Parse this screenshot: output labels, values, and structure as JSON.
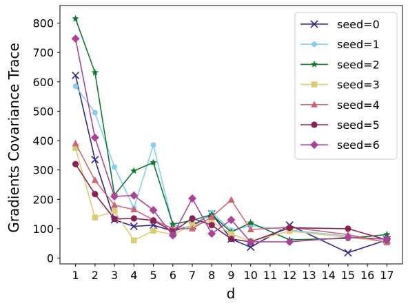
{
  "chart_data": {
    "type": "line",
    "title": "",
    "xlabel": "d",
    "ylabel": "Gradients Covariance Trace",
    "x_ticks": [
      1,
      2,
      3,
      4,
      5,
      6,
      7,
      8,
      9,
      10,
      11,
      12,
      13,
      14,
      15,
      16,
      17
    ],
    "y_ticks": [
      0,
      100,
      200,
      300,
      400,
      500,
      600,
      700,
      800
    ],
    "xlim": [
      0.2,
      17.8
    ],
    "ylim": [
      -20,
      860
    ],
    "grid": false,
    "legend_position": "top-right",
    "series": [
      {
        "name": "seed=0",
        "color": "#332288",
        "marker": "x",
        "x": [
          1,
          2,
          3,
          4,
          5,
          6,
          7,
          8,
          9,
          10,
          12,
          15,
          17
        ],
        "y": [
          622,
          335,
          130,
          108,
          112,
          92,
          110,
          150,
          65,
          37,
          112,
          18,
          62
        ]
      },
      {
        "name": "seed=1",
        "color": "#88ccee",
        "marker": "hexagon",
        "x": [
          1,
          2,
          3,
          4,
          5,
          6,
          7,
          8,
          9,
          10,
          12,
          15,
          17
        ],
        "y": [
          585,
          495,
          310,
          170,
          385,
          112,
          100,
          155,
          95,
          110,
          95,
          75,
          62
        ]
      },
      {
        "name": "seed=2",
        "color": "#117733",
        "marker": "star",
        "x": [
          1,
          2,
          3,
          4,
          5,
          6,
          7,
          8,
          9,
          10,
          12,
          15,
          17
        ],
        "y": [
          815,
          632,
          215,
          297,
          325,
          115,
          128,
          148,
          88,
          120,
          62,
          67,
          80
        ]
      },
      {
        "name": "seed=3",
        "color": "#ddcc77",
        "marker": "square",
        "x": [
          1,
          2,
          3,
          4,
          5,
          6,
          7,
          8,
          9,
          10,
          12,
          15,
          17
        ],
        "y": [
          375,
          138,
          160,
          60,
          93,
          80,
          112,
          125,
          82,
          57,
          92,
          70,
          55
        ]
      },
      {
        "name": "seed=4",
        "color": "#cc6677",
        "marker": "triangle",
        "x": [
          1,
          2,
          3,
          4,
          5,
          6,
          7,
          8,
          9,
          10,
          12,
          15,
          17
        ],
        "y": [
          390,
          265,
          180,
          165,
          130,
          100,
          100,
          140,
          198,
          97,
          105,
          80,
          53
        ]
      },
      {
        "name": "seed=5",
        "color": "#882255",
        "marker": "circle",
        "x": [
          1,
          2,
          3,
          4,
          5,
          6,
          7,
          8,
          9,
          10,
          12,
          15,
          17
        ],
        "y": [
          320,
          218,
          133,
          135,
          128,
          90,
          135,
          112,
          65,
          55,
          103,
          100,
          62
        ]
      },
      {
        "name": "seed=6",
        "color": "#aa4499",
        "marker": "diamond",
        "x": [
          1,
          2,
          3,
          4,
          5,
          6,
          7,
          8,
          9,
          10,
          12,
          15,
          17
        ],
        "y": [
          747,
          410,
          210,
          213,
          163,
          77,
          203,
          83,
          130,
          55,
          55,
          70,
          65
        ]
      }
    ]
  }
}
